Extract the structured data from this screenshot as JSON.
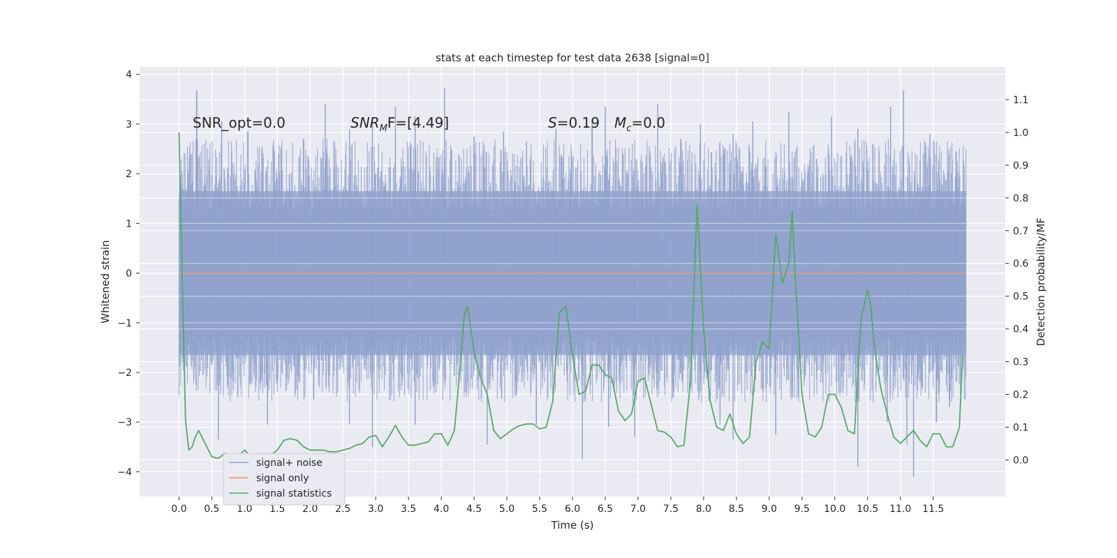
{
  "chart_data": {
    "type": "line",
    "title": "stats at each timestep for test data 2638 [signal=0]",
    "xlabel": "Time (s)",
    "ylabel": "Whitened strain",
    "y2label": "Detection probability/MF",
    "xlim": [
      -0.6,
      12.6
    ],
    "ylim": [
      -4.5,
      4.15
    ],
    "y2lim": [
      -0.112,
      1.2
    ],
    "xticks": [
      0.0,
      0.5,
      1.0,
      1.5,
      2.0,
      2.5,
      3.0,
      3.5,
      4.0,
      4.5,
      5.0,
      5.5,
      6.0,
      6.5,
      7.0,
      7.5,
      8.0,
      8.5,
      9.0,
      9.5,
      10.0,
      10.5,
      11.0,
      11.5
    ],
    "xtick_labels": [
      "0.0",
      "0.5",
      "1.0",
      "1.5",
      "2.0",
      "2.5",
      "3.0",
      "3.5",
      "4.0",
      "4.5",
      "5.0",
      "5.5",
      "6.0",
      "6.5",
      "7.0",
      "7.5",
      "8.0",
      "8.5",
      "9.0",
      "9.5",
      "10.0",
      "10.5",
      "11.0",
      "11.5"
    ],
    "yticks": [
      -4,
      -3,
      -2,
      -1,
      0,
      1,
      2,
      3,
      4
    ],
    "ytick_labels": [
      "−4",
      "−3",
      "−2",
      "−1",
      "0",
      "1",
      "2",
      "3",
      "4"
    ],
    "y2ticks": [
      0.0,
      0.1,
      0.2,
      0.3,
      0.4,
      0.5,
      0.6,
      0.7,
      0.8,
      0.9,
      1.0,
      1.1
    ],
    "y2tick_labels": [
      "0.0",
      "0.1",
      "0.2",
      "0.3",
      "0.4",
      "0.5",
      "0.6",
      "0.7",
      "0.8",
      "0.9",
      "1.0",
      "1.1"
    ],
    "grid": true,
    "legend_position": "lower-left",
    "annotations": {
      "snr_opt": "SNR_opt=0.0",
      "snr_mf_main": "SNR",
      "snr_mf_sub": "M",
      "snr_mf_tail": "F=[4.49]",
      "s_main": "S",
      "s_tail": "=0.19",
      "mc_main": "M",
      "mc_sub": "c",
      "mc_tail": "=0.0"
    },
    "series": [
      {
        "name": "signal+ noise",
        "color": "#8da0cb",
        "x_range": [
          0.0,
          12.0
        ],
        "amplitude_band": [
          -1.65,
          1.65
        ],
        "peaks": [
          [
            0.27,
            3.68
          ],
          [
            0.65,
            3.05
          ],
          [
            1.05,
            2.85
          ],
          [
            1.52,
            2.4
          ],
          [
            1.9,
            2.7
          ],
          [
            2.23,
            3.4
          ],
          [
            2.6,
            2.9
          ],
          [
            2.95,
            3.1
          ],
          [
            3.3,
            3.35
          ],
          [
            3.6,
            3.15
          ],
          [
            4.05,
            3.72
          ],
          [
            4.5,
            2.75
          ],
          [
            4.95,
            2.85
          ],
          [
            5.3,
            2.65
          ],
          [
            5.75,
            2.9
          ],
          [
            6.3,
            3.05
          ],
          [
            6.5,
            3.35
          ],
          [
            7.3,
            3.4
          ],
          [
            7.65,
            2.7
          ],
          [
            7.95,
            3.0
          ],
          [
            8.45,
            2.8
          ],
          [
            8.75,
            3.05
          ],
          [
            9.3,
            3.25
          ],
          [
            9.95,
            3.15
          ],
          [
            10.35,
            2.9
          ],
          [
            10.85,
            3.35
          ],
          [
            11.05,
            3.68
          ],
          [
            11.45,
            2.8
          ],
          [
            11.85,
            2.45
          ]
        ],
        "troughs": [
          [
            0.6,
            -3.35
          ],
          [
            1.35,
            -3.05
          ],
          [
            2.6,
            -3.05
          ],
          [
            2.95,
            -3.5
          ],
          [
            3.6,
            -3.05
          ],
          [
            4.7,
            -3.45
          ],
          [
            5.45,
            -3.05
          ],
          [
            6.15,
            -3.75
          ],
          [
            6.55,
            -3.1
          ],
          [
            6.95,
            -3.3
          ],
          [
            8.25,
            -3.05
          ],
          [
            8.45,
            -3.35
          ],
          [
            9.1,
            -3.25
          ],
          [
            10.35,
            -3.9
          ],
          [
            10.8,
            -3.0
          ],
          [
            11.1,
            -3.45
          ],
          [
            11.2,
            -4.1
          ],
          [
            11.55,
            -3.0
          ],
          [
            11.75,
            -2.7
          ]
        ]
      },
      {
        "name": "signal only",
        "color": "#fc8d62",
        "x": [
          0.0,
          12.0
        ],
        "y": [
          0.0,
          0.0
        ]
      },
      {
        "name": "signal statistics",
        "color": "#55a868",
        "axis": "right",
        "x": [
          0.0,
          0.05,
          0.1,
          0.15,
          0.2,
          0.25,
          0.3,
          0.4,
          0.5,
          0.6,
          0.7,
          0.8,
          0.9,
          1.0,
          1.1,
          1.2,
          1.3,
          1.4,
          1.5,
          1.6,
          1.7,
          1.8,
          1.9,
          2.0,
          2.1,
          2.2,
          2.3,
          2.4,
          2.5,
          2.6,
          2.7,
          2.8,
          2.9,
          3.0,
          3.1,
          3.2,
          3.3,
          3.4,
          3.5,
          3.6,
          3.7,
          3.8,
          3.9,
          4.0,
          4.1,
          4.2,
          4.25,
          4.35,
          4.4,
          4.5,
          4.6,
          4.7,
          4.8,
          4.9,
          5.0,
          5.1,
          5.2,
          5.3,
          5.4,
          5.5,
          5.6,
          5.7,
          5.8,
          5.9,
          6.0,
          6.1,
          6.2,
          6.3,
          6.4,
          6.5,
          6.6,
          6.7,
          6.8,
          6.9,
          7.0,
          7.1,
          7.2,
          7.3,
          7.4,
          7.5,
          7.6,
          7.7,
          7.8,
          7.9,
          8.0,
          8.1,
          8.2,
          8.3,
          8.4,
          8.5,
          8.6,
          8.7,
          8.8,
          8.9,
          9.0,
          9.1,
          9.15,
          9.2,
          9.3,
          9.35,
          9.4,
          9.5,
          9.6,
          9.7,
          9.8,
          9.9,
          10.0,
          10.1,
          10.2,
          10.3,
          10.4,
          10.5,
          10.55,
          10.6,
          10.7,
          10.8,
          10.9,
          11.0,
          11.1,
          11.2,
          11.3,
          11.4,
          11.5,
          11.6,
          11.7,
          11.8,
          11.9,
          11.95
        ],
        "y": [
          1.0,
          0.55,
          0.12,
          0.03,
          0.04,
          0.07,
          0.09,
          0.05,
          0.01,
          0.005,
          0.02,
          0.005,
          0.01,
          0.03,
          0.01,
          0.015,
          0.02,
          0.015,
          0.03,
          0.06,
          0.065,
          0.06,
          0.04,
          0.03,
          0.03,
          0.03,
          0.025,
          0.025,
          0.03,
          0.035,
          0.045,
          0.05,
          0.07,
          0.075,
          0.04,
          0.07,
          0.105,
          0.07,
          0.045,
          0.045,
          0.05,
          0.055,
          0.08,
          0.08,
          0.045,
          0.09,
          0.2,
          0.44,
          0.47,
          0.33,
          0.25,
          0.2,
          0.09,
          0.065,
          0.08,
          0.095,
          0.105,
          0.11,
          0.11,
          0.095,
          0.1,
          0.18,
          0.45,
          0.47,
          0.32,
          0.2,
          0.21,
          0.29,
          0.29,
          0.26,
          0.25,
          0.15,
          0.12,
          0.14,
          0.24,
          0.25,
          0.17,
          0.09,
          0.085,
          0.07,
          0.04,
          0.045,
          0.24,
          0.78,
          0.4,
          0.18,
          0.1,
          0.09,
          0.14,
          0.08,
          0.05,
          0.07,
          0.3,
          0.36,
          0.34,
          0.69,
          0.62,
          0.54,
          0.6,
          0.76,
          0.55,
          0.2,
          0.08,
          0.07,
          0.1,
          0.2,
          0.2,
          0.16,
          0.09,
          0.08,
          0.43,
          0.52,
          0.47,
          0.35,
          0.22,
          0.14,
          0.07,
          0.05,
          0.07,
          0.09,
          0.06,
          0.04,
          0.08,
          0.08,
          0.04,
          0.04,
          0.1,
          0.32
        ]
      }
    ]
  }
}
